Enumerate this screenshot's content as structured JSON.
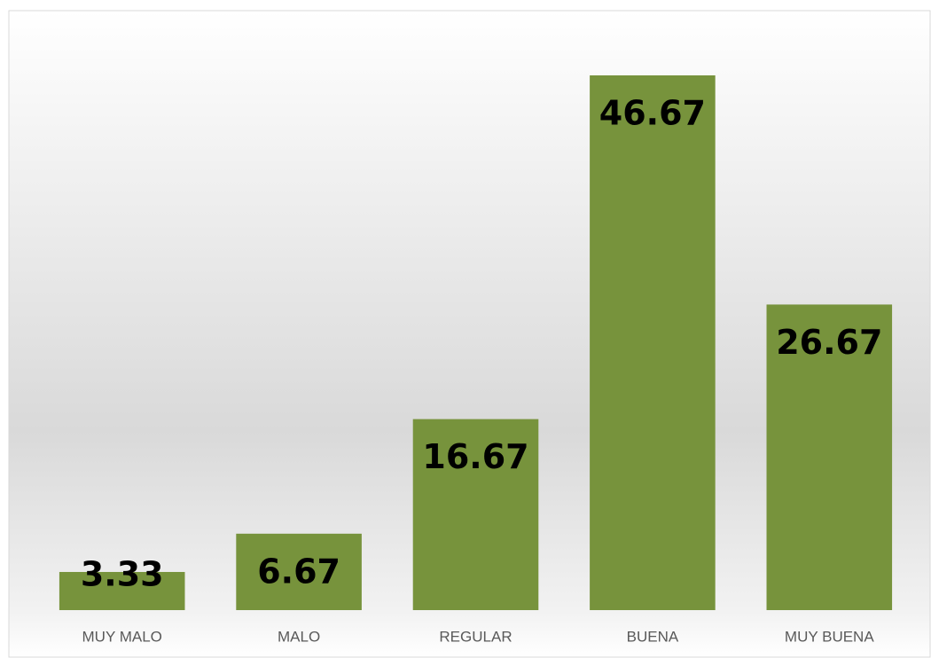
{
  "chart_data": {
    "type": "bar",
    "categories": [
      "MUY MALO",
      "MALO",
      "REGULAR",
      "BUENA",
      "MUY BUENA"
    ],
    "values": [
      3.33,
      6.67,
      16.67,
      46.67,
      26.67
    ],
    "color": "#77933c"
  }
}
